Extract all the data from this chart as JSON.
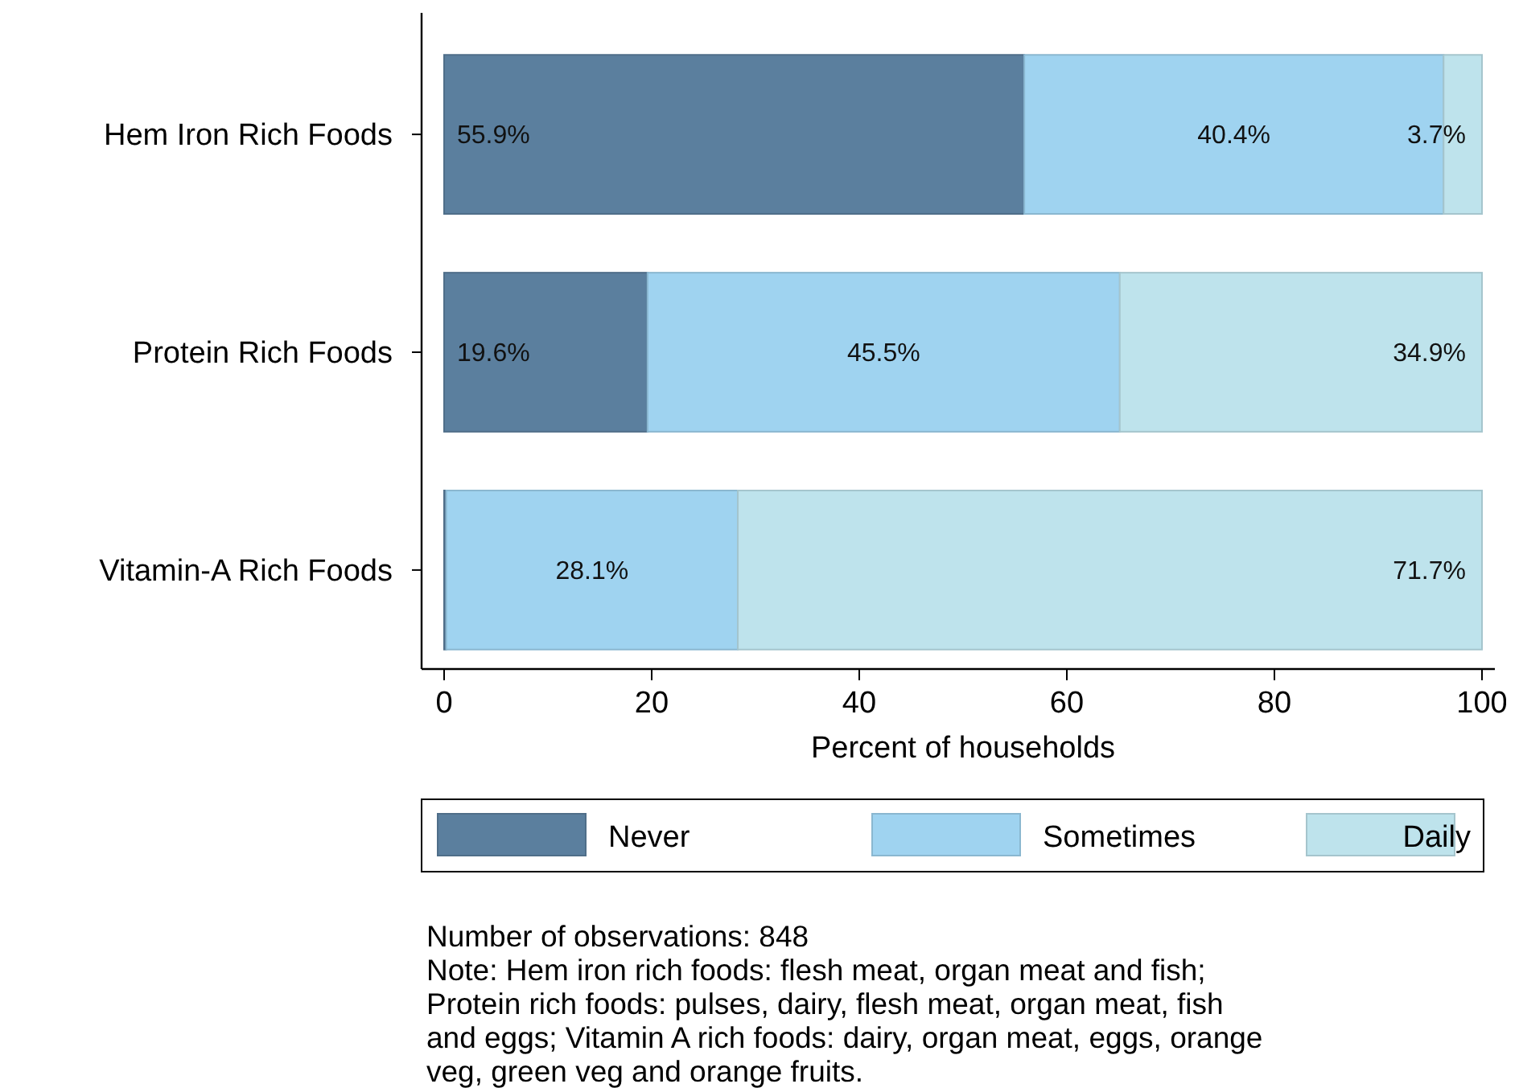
{
  "chart_data": {
    "type": "bar",
    "orientation": "horizontal",
    "stacked": true,
    "categories": [
      "Hem Iron Rich Foods",
      "Protein Rich Foods",
      "Vitamin-A Rich Foods"
    ],
    "series": [
      {
        "name": "Never",
        "color": "#5b7f9e",
        "values": [
          55.9,
          19.6,
          0.2
        ],
        "value_labels": [
          "55.9%",
          "19.6%",
          null
        ]
      },
      {
        "name": "Sometimes",
        "color": "#9fd3f0",
        "values": [
          40.4,
          45.5,
          28.1
        ],
        "value_labels": [
          "40.4%",
          "45.5%",
          "28.1%"
        ]
      },
      {
        "name": "Daily",
        "color": "#bee3ec",
        "values": [
          3.7,
          34.9,
          71.7
        ],
        "value_labels": [
          "3.7%",
          "34.9%",
          "71.7%"
        ]
      }
    ],
    "xlim": [
      0,
      100
    ],
    "xticks": [
      0,
      20,
      40,
      60,
      80,
      100
    ],
    "xlabel": "Percent of households",
    "grid": false,
    "legend": "bottom",
    "annotations": [
      "Number of observations: 848",
      "Note: Hem iron rich foods: flesh meat, organ meat and fish; Protein rich foods: pulses, dairy, flesh meat, organ meat, fish and eggs; Vitamin A rich foods: dairy, organ meat, eggs, orange veg, green veg and orange fruits."
    ]
  }
}
